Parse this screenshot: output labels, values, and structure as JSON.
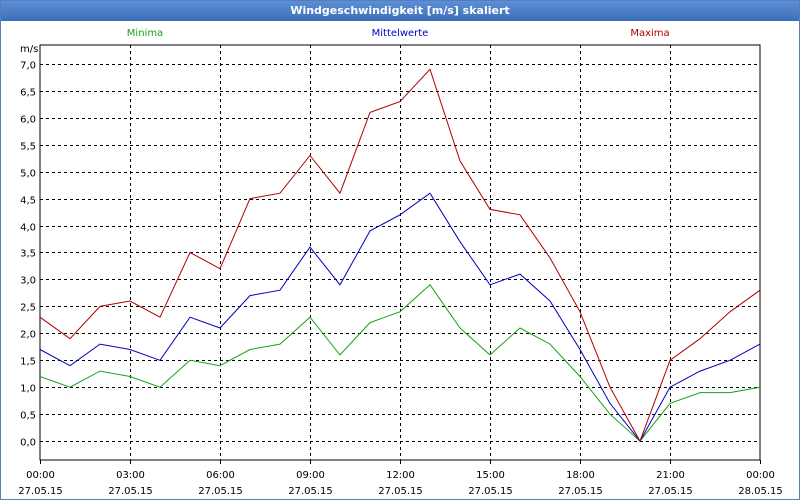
{
  "window": {
    "title": "Windgeschwindigkeit [m/s] skaliert"
  },
  "colors": {
    "minima": "#1aa01a",
    "mittelwerte": "#0000c0",
    "maxima": "#b00000",
    "grid": "#000000",
    "titlebar": "#3d6fb8"
  },
  "chart_data": {
    "type": "line",
    "title": "Windgeschwindigkeit [m/s] skaliert",
    "ylabel": "m/s",
    "ylim": [
      -0.35,
      7.35
    ],
    "yticks": [
      "0,0",
      "0,5",
      "1,0",
      "1,5",
      "2,0",
      "2,5",
      "3,0",
      "3,5",
      "4,0",
      "4,5",
      "5,0",
      "5,5",
      "6,0",
      "6,5",
      "7,0"
    ],
    "xticks": [
      {
        "time": "00:00",
        "date": "27.05.15"
      },
      {
        "time": "03:00",
        "date": "27.05.15"
      },
      {
        "time": "06:00",
        "date": "27.05.15"
      },
      {
        "time": "09:00",
        "date": "27.05.15"
      },
      {
        "time": "12:00",
        "date": "27.05.15"
      },
      {
        "time": "15:00",
        "date": "27.05.15"
      },
      {
        "time": "18:00",
        "date": "27.05.15"
      },
      {
        "time": "21:00",
        "date": "27.05.15"
      },
      {
        "time": "00:00",
        "date": "28.05.15"
      }
    ],
    "x_hours": [
      0,
      1,
      2,
      3,
      4,
      5,
      6,
      7,
      8,
      9,
      10,
      11,
      12,
      13,
      14,
      15,
      16,
      17,
      18,
      19,
      20,
      21,
      22,
      23,
      24
    ],
    "legend": [
      "Minima",
      "Mittelwerte",
      "Maxima"
    ],
    "grid": true,
    "series": [
      {
        "name": "Minima",
        "values": [
          1.2,
          1.0,
          1.3,
          1.2,
          1.0,
          1.5,
          1.4,
          1.7,
          1.8,
          2.3,
          1.6,
          2.2,
          2.4,
          2.9,
          2.1,
          1.6,
          2.1,
          1.8,
          1.2,
          0.5,
          0.0,
          0.7,
          0.9,
          0.9,
          1.0
        ]
      },
      {
        "name": "Mittelwerte",
        "values": [
          1.7,
          1.4,
          1.8,
          1.7,
          1.5,
          2.3,
          2.1,
          2.7,
          2.8,
          3.6,
          2.9,
          3.9,
          4.2,
          4.6,
          3.7,
          2.9,
          3.1,
          2.6,
          1.7,
          0.7,
          0.0,
          1.0,
          1.3,
          1.5,
          1.8
        ]
      },
      {
        "name": "Maxima",
        "values": [
          2.3,
          1.9,
          2.5,
          2.6,
          2.3,
          3.5,
          3.2,
          4.5,
          4.6,
          5.3,
          4.6,
          6.1,
          6.3,
          6.9,
          5.2,
          4.3,
          4.2,
          3.4,
          2.4,
          1.0,
          0.0,
          1.5,
          1.9,
          2.4,
          2.8
        ]
      }
    ]
  }
}
